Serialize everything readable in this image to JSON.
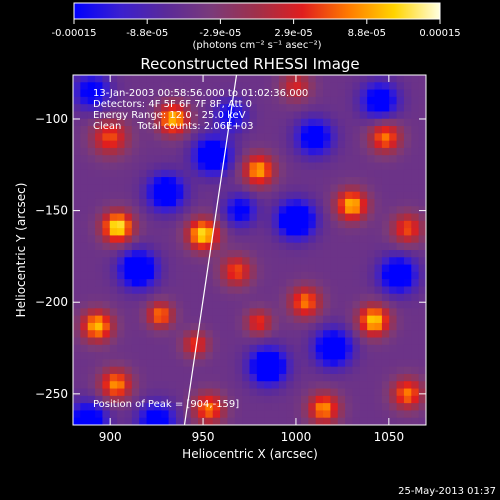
{
  "chart_data": {
    "type": "heatmap",
    "title": "Reconstructed RHESSI Image",
    "xlabel": "Heliocentric X (arcsec)",
    "ylabel": "Heliocentric Y (arcsec)",
    "xlim": [
      880,
      1070
    ],
    "ylim": [
      -267,
      -76
    ],
    "x_ticks": [
      900,
      950,
      1000,
      1050
    ],
    "y_ticks": [
      -250,
      -200,
      -150,
      -100
    ],
    "colorbar": {
      "min": -0.00015,
      "max": 0.00015,
      "tick_labels": [
        "-0.00015",
        "-8.8e-05",
        "-2.9e-05",
        "2.9e-05",
        "8.8e-05",
        "0.00015"
      ],
      "unit_label": "(photons cm⁻² s⁻¹ asec⁻²)",
      "colors": [
        "#0000ff",
        "#3a1fd0",
        "#5a2a9a",
        "#7a3a7a",
        "#a0304a",
        "#e01e1e",
        "#ff7a00",
        "#ffd400",
        "#ffffe0"
      ]
    },
    "info_lines": [
      "13-Jan-2003 00:58:56.000 to 01:02:36.000",
      "Detectors: 4F 5F 6F 7F 8F, Att 0",
      "Energy Range: 12.0 - 25.0 keV",
      "Clean     Total counts: 2.06E+03"
    ],
    "peak_label": "Position of Peak = [904,-159]",
    "peak": {
      "x": 904,
      "y": -159
    },
    "limb_line": [
      {
        "x": 940,
        "y": -267
      },
      {
        "x": 968,
        "y": -76
      }
    ],
    "sources": [
      {
        "x": 904,
        "y": -159,
        "amp": 1.0,
        "s": 6
      },
      {
        "x": 893,
        "y": -213,
        "amp": 0.85,
        "s": 6
      },
      {
        "x": 903,
        "y": -245,
        "amp": 0.75,
        "s": 6
      },
      {
        "x": 900,
        "y": -110,
        "amp": 0.6,
        "s": 7
      },
      {
        "x": 934,
        "y": -100,
        "amp": 0.85,
        "s": 6
      },
      {
        "x": 950,
        "y": -163,
        "amp": 0.95,
        "s": 6
      },
      {
        "x": 927,
        "y": -207,
        "amp": 0.7,
        "s": 5
      },
      {
        "x": 946,
        "y": -223,
        "amp": 0.55,
        "s": 5
      },
      {
        "x": 953,
        "y": -258,
        "amp": 0.7,
        "s": 6
      },
      {
        "x": 980,
        "y": -128,
        "amp": 0.8,
        "s": 6
      },
      {
        "x": 968,
        "y": -183,
        "amp": 0.6,
        "s": 6
      },
      {
        "x": 980,
        "y": -211,
        "amp": 0.55,
        "s": 5
      },
      {
        "x": 1000,
        "y": -82,
        "amp": 0.45,
        "s": 6
      },
      {
        "x": 1005,
        "y": -200,
        "amp": 0.7,
        "s": 6
      },
      {
        "x": 1015,
        "y": -258,
        "amp": 0.75,
        "s": 6
      },
      {
        "x": 1030,
        "y": -147,
        "amp": 0.85,
        "s": 6
      },
      {
        "x": 1042,
        "y": -210,
        "amp": 0.9,
        "s": 6
      },
      {
        "x": 1048,
        "y": -110,
        "amp": 0.7,
        "s": 6
      },
      {
        "x": 1060,
        "y": -160,
        "amp": 0.6,
        "s": 6
      },
      {
        "x": 1060,
        "y": -250,
        "amp": 0.7,
        "s": 6
      },
      {
        "x": 915,
        "y": -182,
        "amp": -0.9,
        "s": 7
      },
      {
        "x": 930,
        "y": -140,
        "amp": -0.8,
        "s": 7
      },
      {
        "x": 955,
        "y": -120,
        "amp": -0.85,
        "s": 7
      },
      {
        "x": 925,
        "y": -265,
        "amp": -0.7,
        "s": 7
      },
      {
        "x": 985,
        "y": -235,
        "amp": -0.9,
        "s": 7
      },
      {
        "x": 1000,
        "y": -155,
        "amp": -0.95,
        "s": 7
      },
      {
        "x": 1010,
        "y": -110,
        "amp": -0.7,
        "s": 7
      },
      {
        "x": 1020,
        "y": -225,
        "amp": -0.85,
        "s": 7
      },
      {
        "x": 1055,
        "y": -185,
        "amp": -0.8,
        "s": 7
      },
      {
        "x": 1045,
        "y": -90,
        "amp": -0.7,
        "s": 7
      },
      {
        "x": 890,
        "y": -85,
        "amp": -0.6,
        "s": 7
      },
      {
        "x": 888,
        "y": -265,
        "amp": -0.8,
        "s": 7
      },
      {
        "x": 970,
        "y": -150,
        "amp": -0.6,
        "s": 6
      },
      {
        "x": 965,
        "y": -98,
        "amp": -0.55,
        "s": 6
      }
    ]
  },
  "footer_timestamp": "25-May-2013 01:37"
}
